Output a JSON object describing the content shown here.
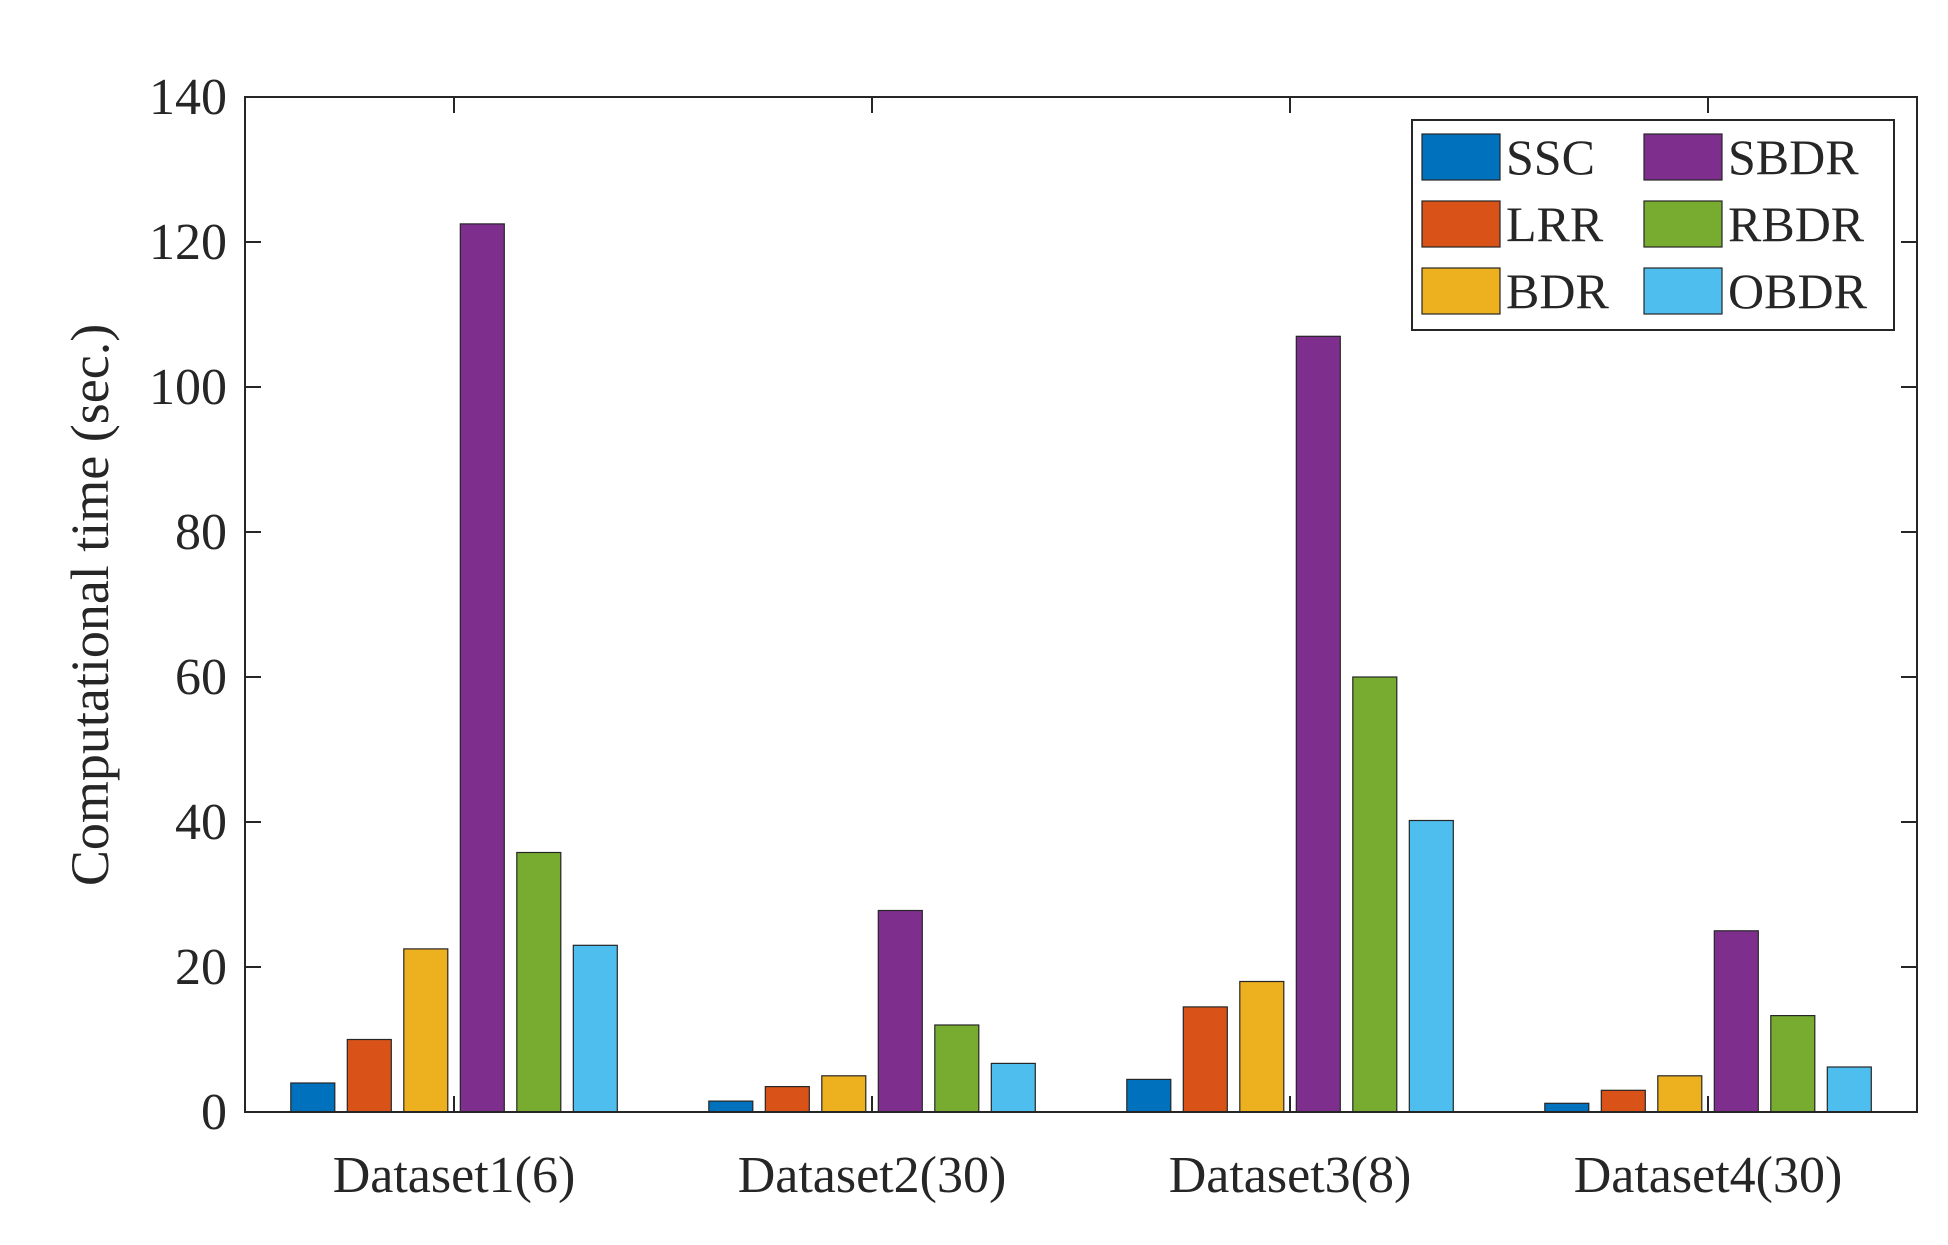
{
  "chart_data": {
    "type": "bar",
    "title": "",
    "xlabel": "",
    "ylabel": "Computational time  (sec.)",
    "ylim": [
      0,
      140
    ],
    "yticks": [
      0,
      20,
      40,
      60,
      80,
      100,
      120,
      140
    ],
    "grid": false,
    "legend_position": "top-right",
    "categories": [
      "Dataset1(6)",
      "Dataset2(30)",
      "Dataset3(8)",
      "Dataset4(30)"
    ],
    "series": [
      {
        "name": "SSC",
        "color": "#0072BD",
        "values": [
          4.0,
          1.5,
          4.5,
          1.2
        ]
      },
      {
        "name": "LRR",
        "color": "#D95319",
        "values": [
          10.0,
          3.5,
          14.5,
          3.0
        ]
      },
      {
        "name": "BDR",
        "color": "#EDB120",
        "values": [
          22.5,
          5.0,
          18.0,
          5.0
        ]
      },
      {
        "name": "SBDR",
        "color": "#7E2F8E",
        "values": [
          122.5,
          27.8,
          107.0,
          25.0
        ]
      },
      {
        "name": "RBDR",
        "color": "#77AC30",
        "values": [
          35.8,
          12.0,
          60.0,
          13.3
        ]
      },
      {
        "name": "OBDR",
        "color": "#4DBEEE",
        "values": [
          23.0,
          6.7,
          40.2,
          6.2
        ]
      }
    ]
  }
}
